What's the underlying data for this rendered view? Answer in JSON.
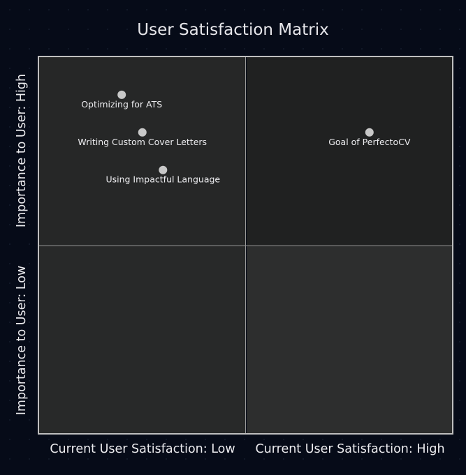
{
  "chart_data": {
    "type": "scatter",
    "title": "User Satisfaction Matrix",
    "quadrant_labels": {
      "y_high": "Importance to User: High",
      "y_low": "Importance to User: Low",
      "x_low": "Current User Satisfaction: Low",
      "x_high": "Current User Satisfaction: High"
    },
    "xlim": [
      0,
      1
    ],
    "ylim": [
      0,
      1
    ],
    "grid": false,
    "points": [
      {
        "label": "Optimizing for ATS",
        "x": 0.2,
        "y": 0.9
      },
      {
        "label": "Writing Custom Cover Letters",
        "x": 0.25,
        "y": 0.8
      },
      {
        "label": "Using Impactful Language",
        "x": 0.3,
        "y": 0.7
      },
      {
        "label": "Goal of PerfectoCV",
        "x": 0.8,
        "y": 0.8
      }
    ],
    "colors": {
      "background": "#060b18",
      "point": "#c8c8c8",
      "quadrant_tl": "#262727",
      "quadrant_tr": "#202121",
      "quadrant_bl": "#282929",
      "quadrant_br": "#2d2e2e"
    }
  }
}
